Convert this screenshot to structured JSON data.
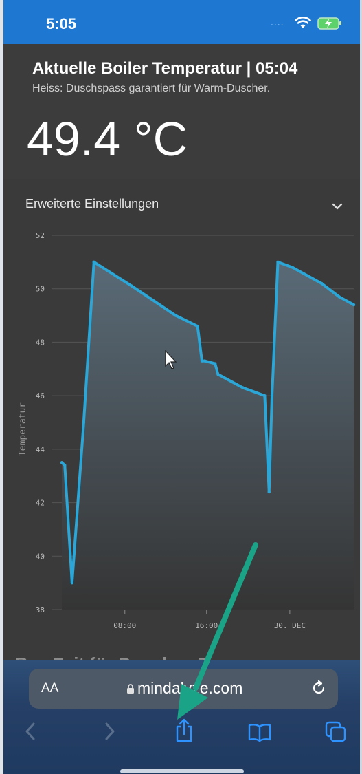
{
  "status": {
    "time": "5:05",
    "signal": "...."
  },
  "header": {
    "title": "Aktuelle Boiler Temperatur | 05:04",
    "subtitle": "Heiss: Duschspass garantiert für Warm-Duscher.",
    "reading": "49.4 °C"
  },
  "settings": {
    "label": "Erweiterte Einstellungen"
  },
  "chart_data": {
    "type": "area",
    "ylabel": "Temperatur",
    "ylim": [
      38,
      52
    ],
    "yticks": [
      "52",
      "50",
      "48",
      "46",
      "44",
      "42",
      "40",
      "38"
    ],
    "xticks": [
      "08:00",
      "16:00",
      "30. DEC"
    ],
    "x": [
      0.0,
      0.2,
      0.7,
      1.5,
      2.2,
      4.8,
      7.8,
      9.3,
      9.6,
      9.8,
      10.5,
      10.7,
      12.4,
      13.9,
      14.2,
      14.4,
      14.8,
      15.8,
      17.8,
      19.0,
      20.0
    ],
    "values": [
      43.5,
      43.4,
      39.0,
      45.0,
      51.0,
      50.1,
      49.0,
      48.6,
      47.3,
      47.3,
      47.2,
      46.8,
      46.3,
      46.0,
      42.4,
      46.0,
      51.0,
      50.8,
      50.2,
      49.7,
      49.4
    ],
    "color": "#2ba6d6"
  },
  "partial_heading": "Bes   Zeit für Duschen T         ",
  "browser": {
    "aa_label": "AA",
    "url": "mindalyze.com"
  },
  "annotation": {
    "arrow_color": "#1aa387"
  }
}
